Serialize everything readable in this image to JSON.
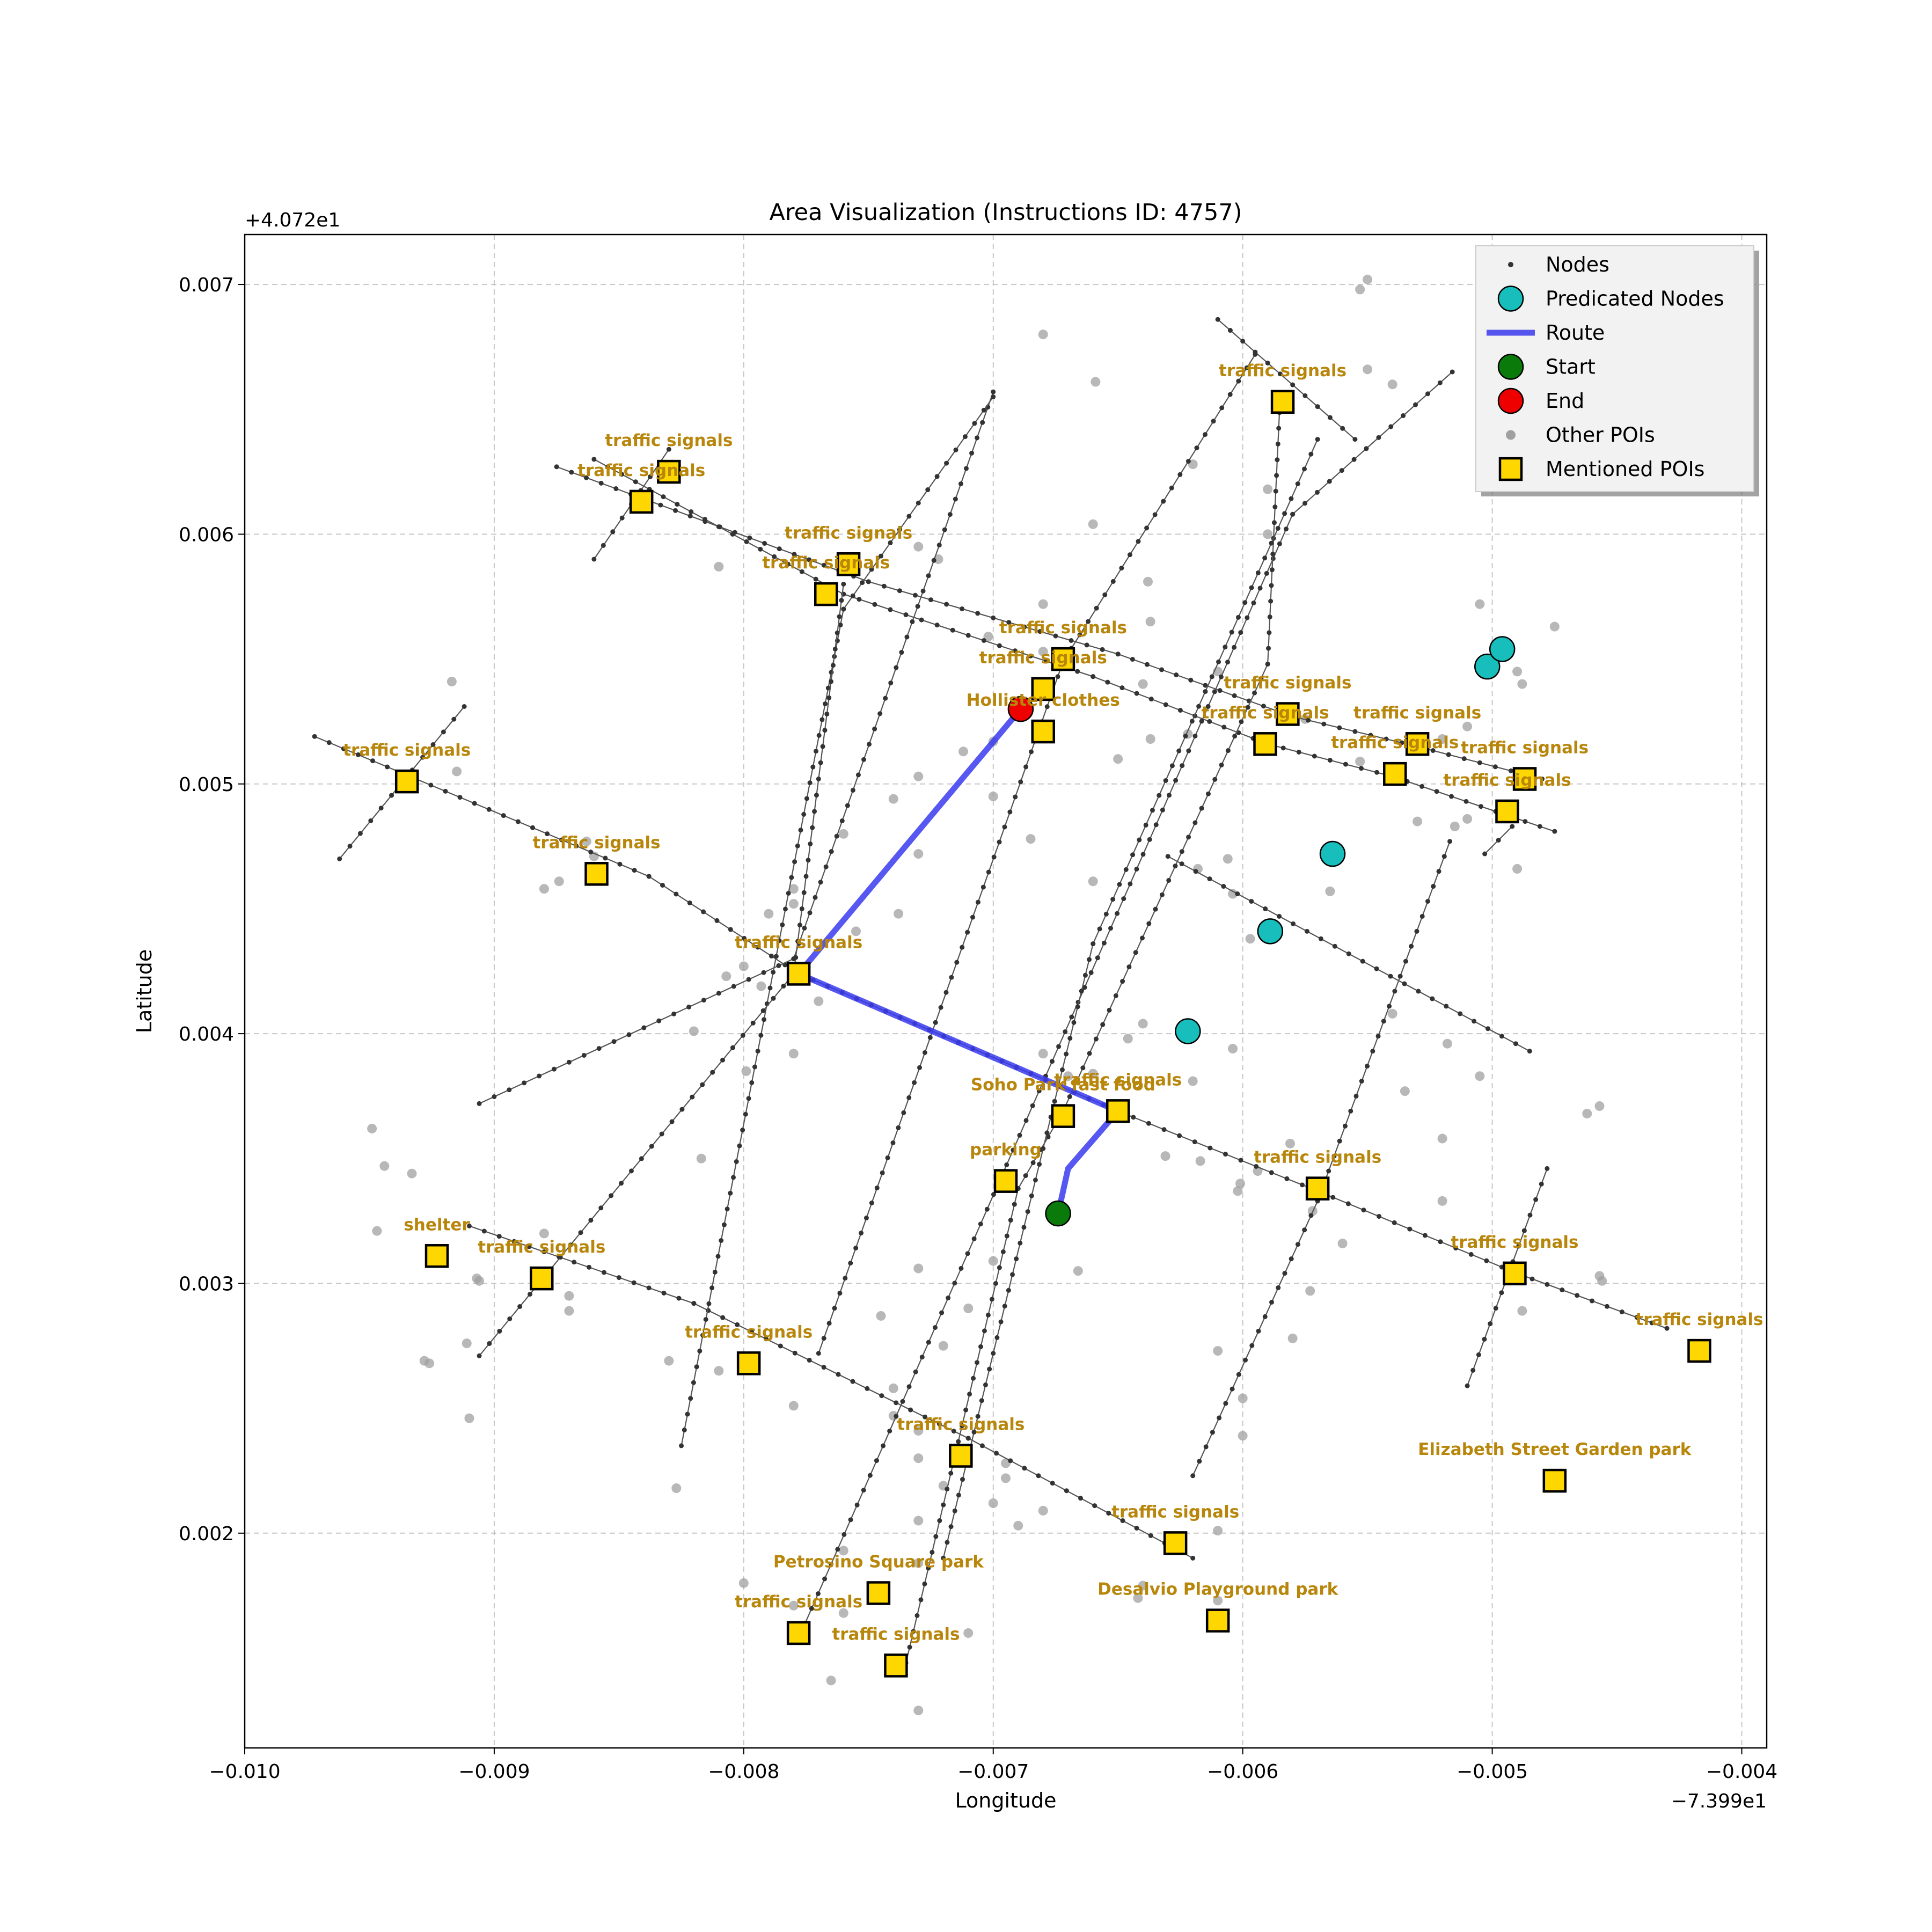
{
  "chart_data": {
    "type": "scatter",
    "title": "Area Visualization (Instructions ID: 4757)",
    "xlabel": "Longitude",
    "ylabel": "Latitude",
    "x_offset_label": "−7.399e1",
    "y_offset_label": "+4.072e1",
    "xlim": [
      -0.01,
      -0.0039
    ],
    "ylim": [
      0.00114,
      0.0072
    ],
    "x_ticks": [
      -0.01,
      -0.009,
      -0.008,
      -0.007,
      -0.006,
      -0.005,
      -0.004
    ],
    "x_tick_labels": [
      "−0.010",
      "−0.009",
      "−0.008",
      "−0.007",
      "−0.006",
      "−0.005",
      "−0.004"
    ],
    "y_ticks": [
      0.002,
      0.003,
      0.004,
      0.005,
      0.006,
      0.007
    ],
    "y_tick_labels": [
      "0.002",
      "0.003",
      "0.004",
      "0.005",
      "0.006",
      "0.007"
    ],
    "grid": true,
    "legend_position": "top-right",
    "legend": [
      {
        "label": "Nodes",
        "kind": "node"
      },
      {
        "label": "Predicated Nodes",
        "kind": "predicated"
      },
      {
        "label": "Route",
        "kind": "route"
      },
      {
        "label": "Start",
        "kind": "start"
      },
      {
        "label": "End",
        "kind": "end"
      },
      {
        "label": "Other POIs",
        "kind": "other"
      },
      {
        "label": "Mentioned POIs",
        "kind": "mentioned"
      }
    ],
    "colors": {
      "node": "#333333",
      "street": "#555555",
      "predicated": "#17bebb",
      "route": "#3a3aee",
      "start": "#0a7a0a",
      "end": "#ee0000",
      "other_poi": "#a0a0a0",
      "mentioned_poi": "#ffd700",
      "poi_label": "#b8860b"
    },
    "streets": [
      [
        [
          -0.00972,
          0.00519
        ],
        [
          -0.00838,
          0.00463
        ],
        [
          -0.00778,
          0.00424
        ],
        [
          -0.0065,
          0.00369
        ],
        [
          -0.0057,
          0.00337
        ],
        [
          -0.0049,
          0.00304
        ],
        [
          -0.0043,
          0.00282
        ]
      ],
      [
        [
          -0.00875,
          0.00627
        ],
        [
          -0.0075,
          0.00581
        ],
        [
          -0.0065,
          0.00552
        ],
        [
          -0.0058,
          0.00527
        ],
        [
          -0.0053,
          0.00515
        ],
        [
          -0.0048,
          0.00502
        ]
      ],
      [
        [
          -0.0086,
          0.0063
        ],
        [
          -0.0076,
          0.00576
        ],
        [
          -0.0066,
          0.00543
        ],
        [
          -0.0059,
          0.00516
        ],
        [
          -0.0054,
          0.00503
        ],
        [
          -0.00475,
          0.00481
        ]
      ],
      [
        [
          -0.0091,
          0.00323
        ],
        [
          -0.0082,
          0.00292
        ],
        [
          -0.0071,
          0.00238
        ],
        [
          -0.0062,
          0.0019
        ]
      ],
      [
        [
          -0.0061,
          0.00686
        ],
        [
          -0.00555,
          0.00638
        ]
      ],
      [
        [
          -0.0063,
          0.00471
        ],
        [
          -0.00485,
          0.00393
        ]
      ],
      [
        [
          -0.00962,
          0.0047
        ],
        [
          -0.00912,
          0.00531
        ]
      ],
      [
        [
          -0.0086,
          0.0059
        ],
        [
          -0.0083,
          0.00634
        ]
      ],
      [
        [
          -0.00906,
          0.00372
        ],
        [
          -0.0078,
          0.0043
        ],
        [
          -0.007,
          0.00657
        ]
      ],
      [
        [
          -0.00825,
          0.00235
        ],
        [
          -0.0076,
          0.0057
        ],
        [
          -0.007,
          0.00655
        ]
      ],
      [
        [
          -0.0077,
          0.00272
        ],
        [
          -0.00672,
          0.00549
        ],
        [
          -0.00595,
          0.00672
        ]
      ],
      [
        [
          -0.00906,
          0.00271
        ],
        [
          -0.0078,
          0.00424
        ],
        [
          -0.0076,
          0.0058
        ]
      ],
      [
        [
          -0.00778,
          0.00158
        ],
        [
          -0.0058,
          0.00608
        ],
        [
          -0.00516,
          0.00665
        ]
      ],
      [
        [
          -0.00735,
          0.00148
        ],
        [
          -0.0069,
          0.00338
        ],
        [
          -0.00672,
          0.00369
        ],
        [
          -0.0059,
          0.00548
        ],
        [
          -0.00585,
          0.00655
        ]
      ],
      [
        [
          -0.0072,
          0.0019
        ],
        [
          -0.0066,
          0.00436
        ],
        [
          -0.0057,
          0.00638
        ]
      ],
      [
        [
          -0.0062,
          0.00223
        ],
        [
          -0.0057,
          0.00333
        ],
        [
          -0.00517,
          0.00477
        ]
      ],
      [
        [
          -0.0051,
          0.00259
        ],
        [
          -0.00478,
          0.00346
        ]
      ],
      [
        [
          -0.00503,
          0.00472
        ],
        [
          -0.00492,
          0.00483
        ]
      ]
    ],
    "route": [
      [
        -0.00732,
        0.0043
      ],
      [
        -0.00689,
        0.0053
      ]
    ],
    "route_segments": [
      [
        [
          -0.00778,
          0.00424
        ],
        [
          -0.00689,
          0.0053
        ]
      ],
      [
        [
          -0.00778,
          0.00424
        ],
        [
          -0.0065,
          0.00369
        ]
      ],
      [
        [
          -0.0065,
          0.00369
        ],
        [
          -0.0067,
          0.00346
        ],
        [
          -0.00674,
          0.00328
        ]
      ]
    ],
    "start": [
      -0.00674,
      0.00328
    ],
    "end": [
      -0.00689,
      0.0053
    ],
    "predicated_nodes": [
      [
        -0.00622,
        0.00401
      ],
      [
        -0.00589,
        0.00441
      ],
      [
        -0.00564,
        0.00472
      ],
      [
        -0.00502,
        0.00547
      ],
      [
        -0.00496,
        0.00554
      ]
    ],
    "other_pois": [
      [
        -0.0068,
        0.0068
      ],
      [
        -0.00659,
        0.00661
      ],
      [
        -0.0055,
        0.00702
      ],
      [
        -0.00553,
        0.00698
      ],
      [
        -0.0055,
        0.00666
      ],
      [
        -0.0054,
        0.0066
      ],
      [
        -0.0062,
        0.00628
      ],
      [
        -0.0059,
        0.00618
      ],
      [
        -0.0059,
        0.006
      ],
      [
        -0.0066,
        0.00604
      ],
      [
        -0.00722,
        0.0059
      ],
      [
        -0.0073,
        0.00595
      ],
      [
        -0.0081,
        0.00587
      ],
      [
        -0.00702,
        0.00559
      ],
      [
        -0.0068,
        0.00572
      ],
      [
        -0.0068,
        0.00553
      ],
      [
        -0.00638,
        0.00581
      ],
      [
        -0.00637,
        0.00565
      ],
      [
        -0.0064,
        0.0054
      ],
      [
        -0.00712,
        0.00513
      ],
      [
        -0.007,
        0.00517
      ],
      [
        -0.0065,
        0.0051
      ],
      [
        -0.00637,
        0.00518
      ],
      [
        -0.0061,
        0.00545
      ],
      [
        -0.00505,
        0.00572
      ],
      [
        -0.00475,
        0.00563
      ],
      [
        -0.0049,
        0.00545
      ],
      [
        -0.00488,
        0.0054
      ],
      [
        -0.0051,
        0.00523
      ],
      [
        -0.0052,
        0.00518
      ],
      [
        -0.0053,
        0.00485
      ],
      [
        -0.00515,
        0.00483
      ],
      [
        -0.0051,
        0.00486
      ],
      [
        -0.0049,
        0.00466
      ],
      [
        -0.0073,
        0.00503
      ],
      [
        -0.0074,
        0.00494
      ],
      [
        -0.007,
        0.00495
      ],
      [
        -0.0073,
        0.00472
      ],
      [
        -0.00685,
        0.00478
      ],
      [
        -0.0066,
        0.00461
      ],
      [
        -0.00618,
        0.00466
      ],
      [
        -0.00606,
        0.0047
      ],
      [
        -0.00604,
        0.00456
      ],
      [
        -0.00597,
        0.00438
      ],
      [
        -0.00565,
        0.00457
      ],
      [
        -0.0054,
        0.00408
      ],
      [
        -0.00518,
        0.00396
      ],
      [
        -0.0052,
        0.00358
      ],
      [
        -0.00505,
        0.00383
      ],
      [
        -0.00535,
        0.00377
      ],
      [
        -0.00462,
        0.00368
      ],
      [
        -0.00457,
        0.00371
      ],
      [
        -0.00457,
        0.00303
      ],
      [
        -0.00456,
        0.00301
      ],
      [
        -0.0062,
        0.00381
      ],
      [
        -0.0064,
        0.00404
      ],
      [
        -0.00646,
        0.00398
      ],
      [
        -0.00604,
        0.00394
      ],
      [
        -0.00631,
        0.00351
      ],
      [
        -0.00617,
        0.00349
      ],
      [
        -0.00601,
        0.0034
      ],
      [
        -0.00602,
        0.00337
      ],
      [
        -0.00594,
        0.00345
      ],
      [
        -0.00581,
        0.00356
      ],
      [
        -0.00572,
        0.00329
      ],
      [
        -0.0052,
        0.00333
      ],
      [
        -0.0056,
        0.00316
      ],
      [
        -0.0058,
        0.00278
      ],
      [
        -0.006,
        0.00254
      ],
      [
        -0.00573,
        0.00297
      ],
      [
        -0.0061,
        0.00273
      ],
      [
        -0.006,
        0.00239
      ],
      [
        -0.0061,
        0.00201
      ],
      [
        -0.00488,
        0.00289
      ],
      [
        -0.0068,
        0.00392
      ],
      [
        -0.0067,
        0.00383
      ],
      [
        -0.0066,
        0.00384
      ],
      [
        -0.007,
        0.00309
      ],
      [
        -0.00666,
        0.00305
      ],
      [
        -0.0073,
        0.00306
      ],
      [
        -0.0071,
        0.0029
      ],
      [
        -0.0072,
        0.00275
      ],
      [
        -0.0074,
        0.00258
      ],
      [
        -0.0073,
        0.00241
      ],
      [
        -0.0074,
        0.00247
      ],
      [
        -0.00695,
        0.00228
      ],
      [
        -0.00695,
        0.00222
      ],
      [
        -0.0073,
        0.0023
      ],
      [
        -0.007,
        0.00212
      ],
      [
        -0.0068,
        0.00209
      ],
      [
        -0.0072,
        0.00219
      ],
      [
        -0.0069,
        0.00203
      ],
      [
        -0.0073,
        0.00205
      ],
      [
        -0.0064,
        0.00179
      ],
      [
        -0.00642,
        0.00174
      ],
      [
        -0.0061,
        0.00173
      ],
      [
        -0.0073,
        0.00188
      ],
      [
        -0.0076,
        0.00168
      ],
      [
        -0.0076,
        0.00193
      ],
      [
        -0.0078,
        0.00171
      ],
      [
        -0.00765,
        0.00141
      ],
      [
        -0.0073,
        0.00129
      ],
      [
        -0.0071,
        0.0016
      ],
      [
        -0.008,
        0.0018
      ],
      [
        -0.0078,
        0.00251
      ],
      [
        -0.0081,
        0.00265
      ],
      [
        -0.00827,
        0.00218
      ],
      [
        -0.00817,
        0.0035
      ],
      [
        -0.0078,
        0.00392
      ],
      [
        -0.00799,
        0.00385
      ],
      [
        -0.0082,
        0.00401
      ],
      [
        -0.00793,
        0.00419
      ],
      [
        -0.00807,
        0.00423
      ],
      [
        -0.008,
        0.00427
      ],
      [
        -0.0077,
        0.00413
      ],
      [
        -0.0078,
        0.00458
      ],
      [
        -0.0079,
        0.00448
      ],
      [
        -0.0078,
        0.00452
      ],
      [
        -0.00755,
        0.00441
      ],
      [
        -0.00738,
        0.00448
      ],
      [
        -0.0086,
        0.00471
      ],
      [
        -0.00863,
        0.00477
      ],
      [
        -0.0076,
        0.0048
      ],
      [
        -0.00874,
        0.00461
      ],
      [
        -0.0088,
        0.00458
      ],
      [
        -0.00917,
        0.00541
      ],
      [
        -0.00915,
        0.00505
      ],
      [
        -0.00949,
        0.00362
      ],
      [
        -0.00944,
        0.00347
      ],
      [
        -0.00933,
        0.00344
      ],
      [
        -0.00947,
        0.00321
      ],
      [
        -0.00928,
        0.00269
      ],
      [
        -0.00926,
        0.00268
      ],
      [
        -0.00911,
        0.00276
      ],
      [
        -0.00907,
        0.00302
      ],
      [
        -0.00906,
        0.00301
      ],
      [
        -0.0091,
        0.00246
      ],
      [
        -0.0088,
        0.0032
      ],
      [
        -0.0087,
        0.00289
      ],
      [
        -0.0087,
        0.00295
      ],
      [
        -0.00745,
        0.00287
      ],
      [
        -0.0083,
        0.00269
      ],
      [
        -0.00622,
        0.0052
      ],
      [
        -0.00575,
        0.00526
      ],
      [
        -0.00553,
        0.00509
      ]
    ],
    "mentioned_pois": [
      {
        "x": -0.00584,
        "y": 0.00653,
        "label": "traffic signals"
      },
      {
        "x": -0.0083,
        "y": 0.00625,
        "label": "traffic signals"
      },
      {
        "x": -0.00841,
        "y": 0.00613,
        "label": "traffic signals"
      },
      {
        "x": -0.00758,
        "y": 0.00588,
        "label": "traffic signals"
      },
      {
        "x": -0.00767,
        "y": 0.00576,
        "label": "traffic signals"
      },
      {
        "x": -0.00672,
        "y": 0.0055,
        "label": "traffic signals"
      },
      {
        "x": -0.0068,
        "y": 0.00538,
        "label": "traffic signals"
      },
      {
        "x": -0.0068,
        "y": 0.00521,
        "label": "Hollister   clothes"
      },
      {
        "x": -0.00582,
        "y": 0.00528,
        "label": "traffic signals"
      },
      {
        "x": -0.00591,
        "y": 0.00516,
        "label": "traffic signals"
      },
      {
        "x": -0.0053,
        "y": 0.00516,
        "label": "traffic signals"
      },
      {
        "x": -0.00539,
        "y": 0.00504,
        "label": "traffic signals"
      },
      {
        "x": -0.00487,
        "y": 0.00502,
        "label": "traffic signals"
      },
      {
        "x": -0.00494,
        "y": 0.00489,
        "label": "traffic signals"
      },
      {
        "x": -0.00935,
        "y": 0.00501,
        "label": "traffic signals"
      },
      {
        "x": -0.00859,
        "y": 0.00464,
        "label": "traffic signals"
      },
      {
        "x": -0.00778,
        "y": 0.00424,
        "label": "traffic signals"
      },
      {
        "x": -0.0065,
        "y": 0.00369,
        "label": "traffic signals"
      },
      {
        "x": -0.00672,
        "y": 0.00367,
        "label": "Soho Park   fast food"
      },
      {
        "x": -0.00695,
        "y": 0.00341,
        "label": "parking"
      },
      {
        "x": -0.0057,
        "y": 0.00338,
        "label": "traffic signals"
      },
      {
        "x": -0.00923,
        "y": 0.00311,
        "label": "shelter"
      },
      {
        "x": -0.00881,
        "y": 0.00302,
        "label": "traffic signals"
      },
      {
        "x": -0.00491,
        "y": 0.00304,
        "label": "traffic signals"
      },
      {
        "x": -0.00417,
        "y": 0.00273,
        "label": "traffic signals"
      },
      {
        "x": -0.00798,
        "y": 0.00268,
        "label": "traffic signals"
      },
      {
        "x": -0.00713,
        "y": 0.00231,
        "label": "traffic signals"
      },
      {
        "x": -0.00475,
        "y": 0.00221,
        "label": "Elizabeth Street Garden   park"
      },
      {
        "x": -0.00627,
        "y": 0.00196,
        "label": "traffic signals"
      },
      {
        "x": -0.00746,
        "y": 0.00176,
        "label": "Petrosino Square   park"
      },
      {
        "x": -0.00778,
        "y": 0.0016,
        "label": "traffic signals"
      },
      {
        "x": -0.00739,
        "y": 0.00147,
        "label": "traffic signals"
      },
      {
        "x": -0.0061,
        "y": 0.00165,
        "label": "Desalvio Playground   park"
      }
    ]
  }
}
